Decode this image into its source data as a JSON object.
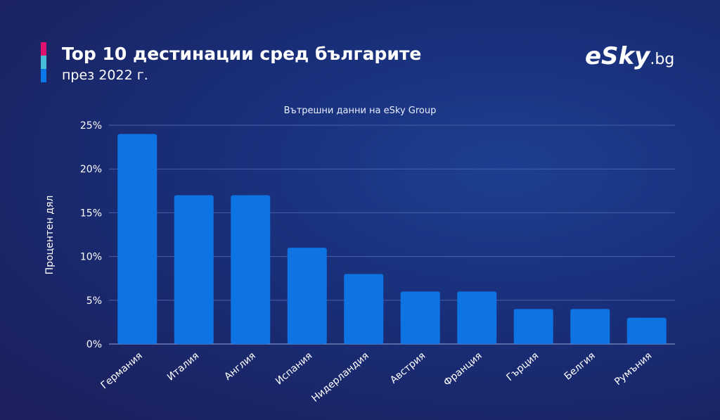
{
  "header": {
    "title": "Top 10 дестинации сред българите",
    "subtitle": "през 2022 г.",
    "logo_main": "eSky",
    "logo_suffix": ".bg",
    "accent_colors": [
      "#e0106e",
      "#47bdd8",
      "#0a78e8"
    ]
  },
  "chart_data": {
    "type": "bar",
    "title": "Вътрешни данни на eSky Group",
    "xlabel": "",
    "ylabel": "Процентен дял",
    "categories": [
      "Германия",
      "Италия",
      "Англия",
      "Испания",
      "Нидерландия",
      "Австрия",
      "Франция",
      "Гърция",
      "Белгия",
      "Румъния"
    ],
    "values": [
      24,
      17,
      17,
      11,
      8,
      6,
      6,
      4,
      4,
      3
    ],
    "ylim": [
      0,
      25
    ],
    "yticks": [
      "0%",
      "5%",
      "10%",
      "15%",
      "20%",
      "25%"
    ],
    "grid": true,
    "bar_color": "#0e74e4"
  }
}
